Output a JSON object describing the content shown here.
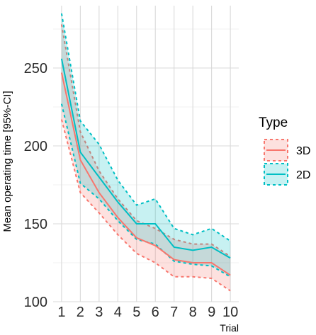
{
  "chart_data": {
    "type": "line",
    "xlabel": "Trial",
    "ylabel": "Mean operating time [95%-CI]",
    "x": [
      1,
      2,
      3,
      4,
      5,
      6,
      7,
      8,
      9,
      10
    ],
    "xlim": [
      0.55,
      10.45
    ],
    "ylim": [
      100,
      290
    ],
    "yticks": [
      100,
      150,
      200,
      250
    ],
    "grid": true,
    "legend": {
      "title": "Type",
      "position": "right"
    },
    "series": [
      {
        "name": "3D",
        "color": "#F8766D",
        "mean": [
          247,
          191,
          170,
          154,
          141,
          136,
          127,
          125,
          125,
          117
        ],
        "lower": [
          217,
          170,
          157,
          143,
          131,
          125,
          116,
          116,
          115,
          107
        ],
        "upper": [
          278,
          209,
          184,
          166,
          152,
          147,
          140,
          137,
          137,
          129
        ]
      },
      {
        "name": "2D",
        "color": "#00BFC4",
        "mean": [
          256,
          196,
          180,
          164,
          150,
          150,
          135,
          133,
          135,
          128
        ],
        "lower": [
          227,
          176,
          166,
          152,
          140,
          137,
          126,
          124,
          123,
          116
        ],
        "upper": [
          285,
          216,
          201,
          178,
          162,
          166,
          147,
          143,
          147,
          139
        ]
      }
    ]
  }
}
